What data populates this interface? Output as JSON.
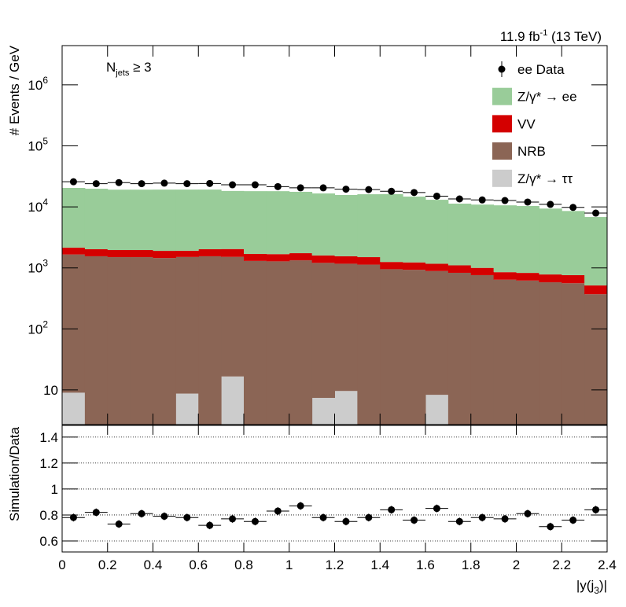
{
  "chart_data": [
    {
      "type": "histogram",
      "annotations": {
        "lumi": {
          "text": "11.9 fb",
          "sup": "-1",
          "rest": " (13 TeV)"
        },
        "selection": {
          "text": "N",
          "sub": "jets",
          "rest": " ≥ 3"
        }
      },
      "ylabel": "# Events / GeV",
      "bins": [
        0,
        0.1,
        0.2,
        0.3,
        0.4,
        0.5,
        0.6,
        0.7,
        0.8,
        0.9,
        1,
        1.1,
        1.2,
        1.3,
        1.4,
        1.5,
        1.6,
        1.7,
        1.8,
        1.9,
        2,
        2.1,
        2.2,
        2.3,
        2.4
      ],
      "stacked": true,
      "log": true,
      "legend": "top-right",
      "ylim": [
        2.7,
        4400000
      ],
      "yticks": [
        10,
        {
          "value": 100,
          "label": "10",
          "exponent": "2"
        },
        {
          "value": 1000,
          "label": "10",
          "exponent": "3"
        },
        {
          "value": 10000,
          "label": "10",
          "exponent": "4"
        },
        {
          "value": 100000,
          "label": "10",
          "exponent": "5"
        },
        {
          "value": 1000000,
          "label": "10",
          "exponent": "6"
        }
      ],
      "series": [
        {
          "name": "Z/γ* → ττ",
          "color": "#cccccc",
          "values": [
            9,
            0,
            0,
            0,
            0,
            8.7,
            0,
            16.6,
            0,
            0,
            0,
            7.4,
            9.6,
            0,
            0,
            0,
            8.3,
            0,
            0,
            0,
            0,
            0,
            0,
            0
          ]
        },
        {
          "name": "NRB",
          "color": "#8b6555",
          "values": [
            1650,
            1550,
            1500,
            1500,
            1450,
            1500,
            1550,
            1500,
            1300,
            1280,
            1330,
            1200,
            1160,
            1130,
            950,
            930,
            880,
            830,
            760,
            640,
            620,
            580,
            560,
            370
          ]
        },
        {
          "name": "VV",
          "color": "#d40000",
          "values": [
            490,
            470,
            460,
            460,
            450,
            400,
            470,
            520,
            390,
            400,
            410,
            390,
            380,
            370,
            300,
            300,
            280,
            270,
            240,
            210,
            207,
            200,
            200,
            145
          ]
        },
        {
          "name": "Z/γ* → ee",
          "color": "#99cc99",
          "values": [
            18300,
            17800,
            17200,
            17200,
            17300,
            17300,
            17200,
            16200,
            16400,
            16400,
            15900,
            15000,
            14100,
            14600,
            14900,
            13500,
            11900,
            10200,
            9900,
            9750,
            9500,
            8600,
            7800,
            6300
          ]
        }
      ],
      "points": {
        "name": "ee Data",
        "color": "#000000",
        "values": [
          25800,
          24000,
          25000,
          24000,
          24500,
          24000,
          24200,
          23000,
          23000,
          21500,
          20500,
          20500,
          19500,
          19200,
          18000,
          17200,
          15000,
          13500,
          13000,
          12700,
          12000,
          11000,
          9800,
          7900
        ]
      }
    },
    {
      "type": "ratio",
      "ylabel": "Simulation/Data",
      "xlabel": {
        "text": "|y(j",
        "sub": "3",
        "rest": ")|"
      },
      "xlim": [
        0,
        2.4
      ],
      "xticks": [
        0,
        0.2,
        0.4,
        0.6,
        0.8,
        1,
        1.2,
        1.4,
        1.6,
        1.8,
        2,
        2.2,
        2.4
      ],
      "ylim": [
        0.515,
        1.49
      ],
      "yticks": [
        0.6,
        0.8,
        1,
        1.2,
        1.4
      ],
      "grid": true,
      "values": [
        0.78,
        0.82,
        0.73,
        0.81,
        0.79,
        0.78,
        0.72,
        0.77,
        0.75,
        0.83,
        0.87,
        0.78,
        0.75,
        0.78,
        0.84,
        0.76,
        0.85,
        0.75,
        0.78,
        0.77,
        0.81,
        0.71,
        0.76,
        0.84
      ],
      "errors": [
        0.03,
        0.03,
        0.03,
        0.03,
        0.03,
        0.03,
        0.03,
        0.03,
        0.03,
        0.03,
        0.03,
        0.03,
        0.03,
        0.03,
        0.03,
        0.03,
        0.03,
        0.03,
        0.03,
        0.03,
        0.03,
        0.03,
        0.03,
        0.03
      ],
      "color": "#000000"
    }
  ]
}
